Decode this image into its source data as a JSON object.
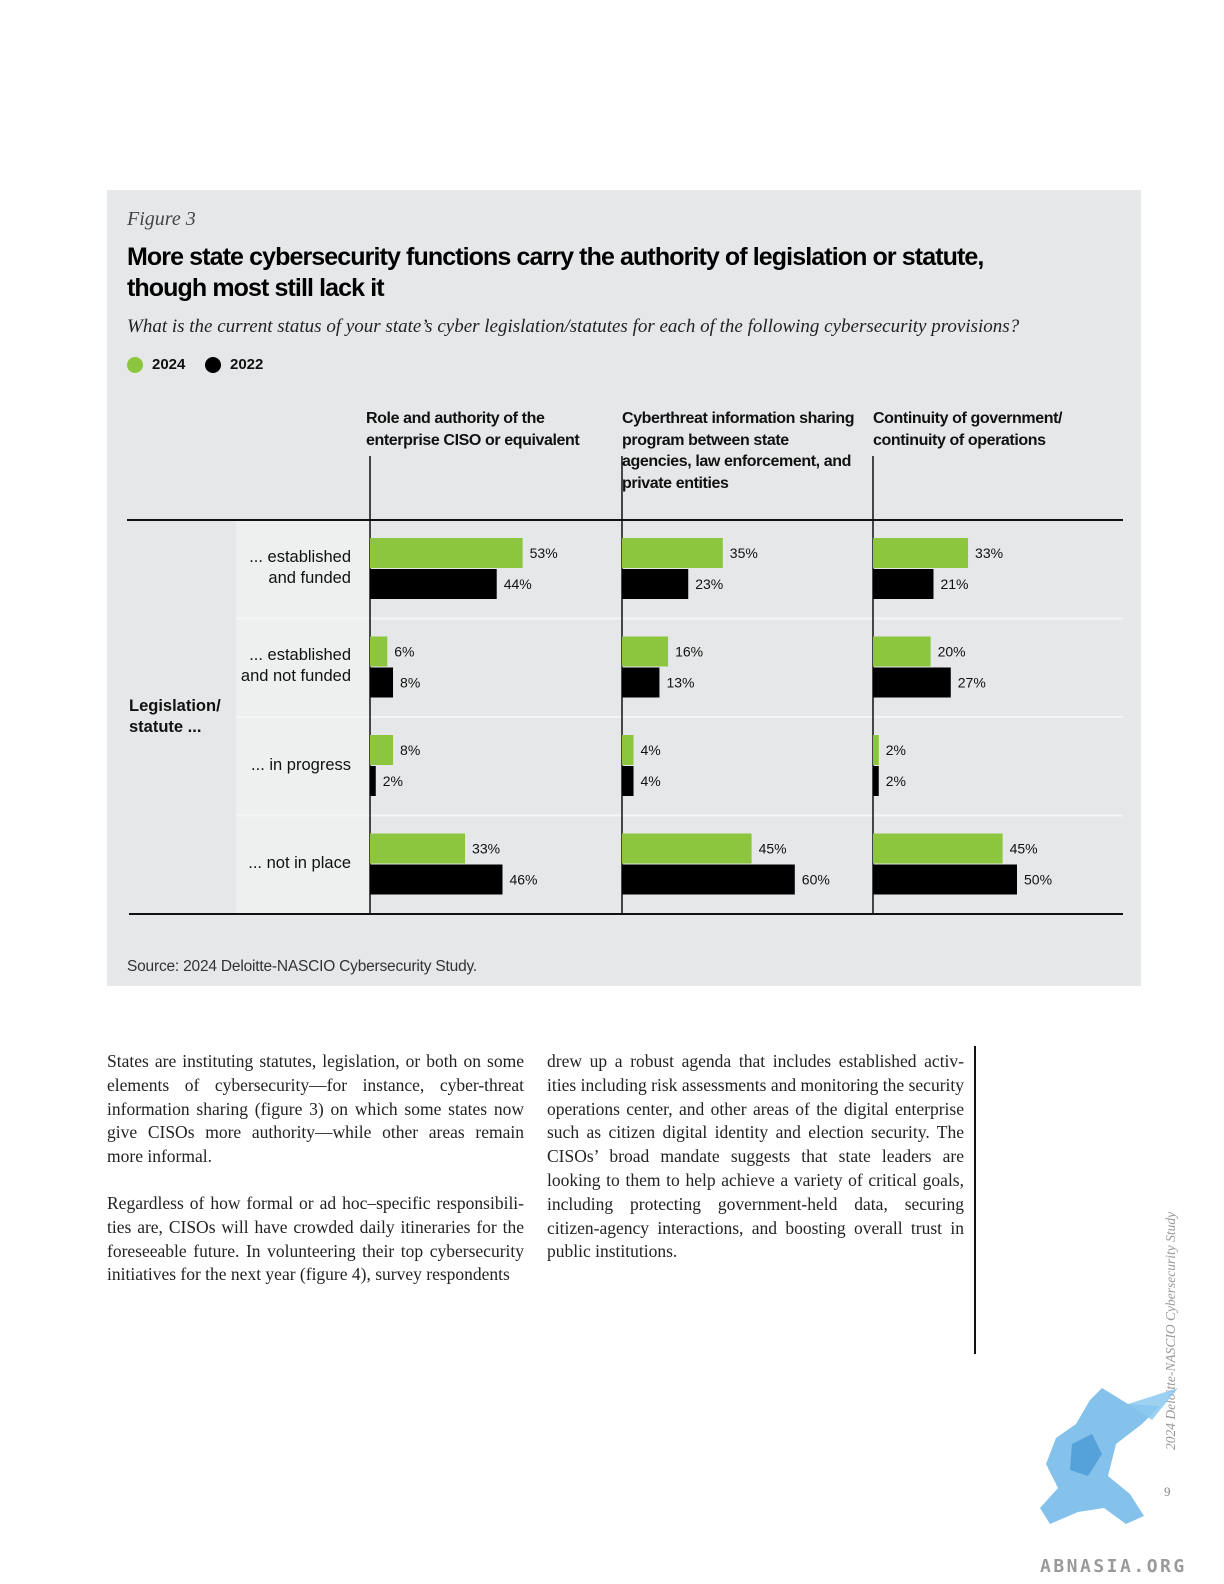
{
  "figure": {
    "label": "Figure 3",
    "title": "More state cybersecurity functions carry the authority of legislation or statute, though most still lack it",
    "subtitle": "What is the current status of your state’s cyber legislation/statutes for each of the following cybersecurity provisions?",
    "source": "Source: 2024 Deloitte-NASCIO Cybersecurity Study.",
    "row_group_label": "Legislation/\nstatute ..."
  },
  "colors": {
    "y2024": "#8cc63f",
    "y2022": "#000000",
    "panel": "#e6e7e8",
    "label_cell": "#eeefef"
  },
  "chart_data": {
    "type": "bar",
    "orientation": "horizontal",
    "legend": [
      "2024",
      "2022"
    ],
    "row_labels": [
      "... established\nand funded",
      "... established\nand not funded",
      "... in progress",
      "... not in place"
    ],
    "panels": [
      {
        "title": "Role and authority of the enterprise CISO or equivalent",
        "series": [
          {
            "name": "2024",
            "values": [
              53,
              6,
              8,
              33
            ]
          },
          {
            "name": "2022",
            "values": [
              44,
              8,
              2,
              46
            ]
          }
        ]
      },
      {
        "title": "Cyberthreat information sharing program between state agencies, law enforcement, and private entities",
        "series": [
          {
            "name": "2024",
            "values": [
              35,
              16,
              4,
              45
            ]
          },
          {
            "name": "2022",
            "values": [
              23,
              13,
              4,
              60
            ]
          }
        ]
      },
      {
        "title": "Continuity of government/ continuity of operations",
        "series": [
          {
            "name": "2024",
            "values": [
              33,
              20,
              2,
              45
            ]
          },
          {
            "name": "2022",
            "values": [
              21,
              27,
              2,
              50
            ]
          }
        ]
      }
    ],
    "unit": "%"
  },
  "body": {
    "col1_p1": "States are instituting statutes, legislation, or both on some elements of cybersecurity—for instance, cyber-threat information sharing (figure 3) on which some states now give CISOs more authority—while other areas remain more informal.",
    "col1_p2": "Regardless of how formal or ad hoc–specific responsibili-ties are, CISOs will have crowded daily itineraries for the foreseeable future. In volunteering their top cybersecurity initiatives for the next year (figure 4), survey respondents",
    "col2_p1": "drew up a robust agenda that includes established activ-ities including risk assessments and monitoring the security operations center, and other areas of the digital enterprise such as citizen digital identity and election security. The CISOs’ broad mandate suggests that state leaders are looking to them to help achieve a variety of critical goals, including protecting government-held data, securing citizen-agency interactions, and boosting overall trust in public institutions."
  },
  "footer": {
    "running_title": "2024 Deloitte-NASCIO Cybersecurity Study",
    "page_number": "9",
    "watermark": "ABNASIA.ORG"
  }
}
